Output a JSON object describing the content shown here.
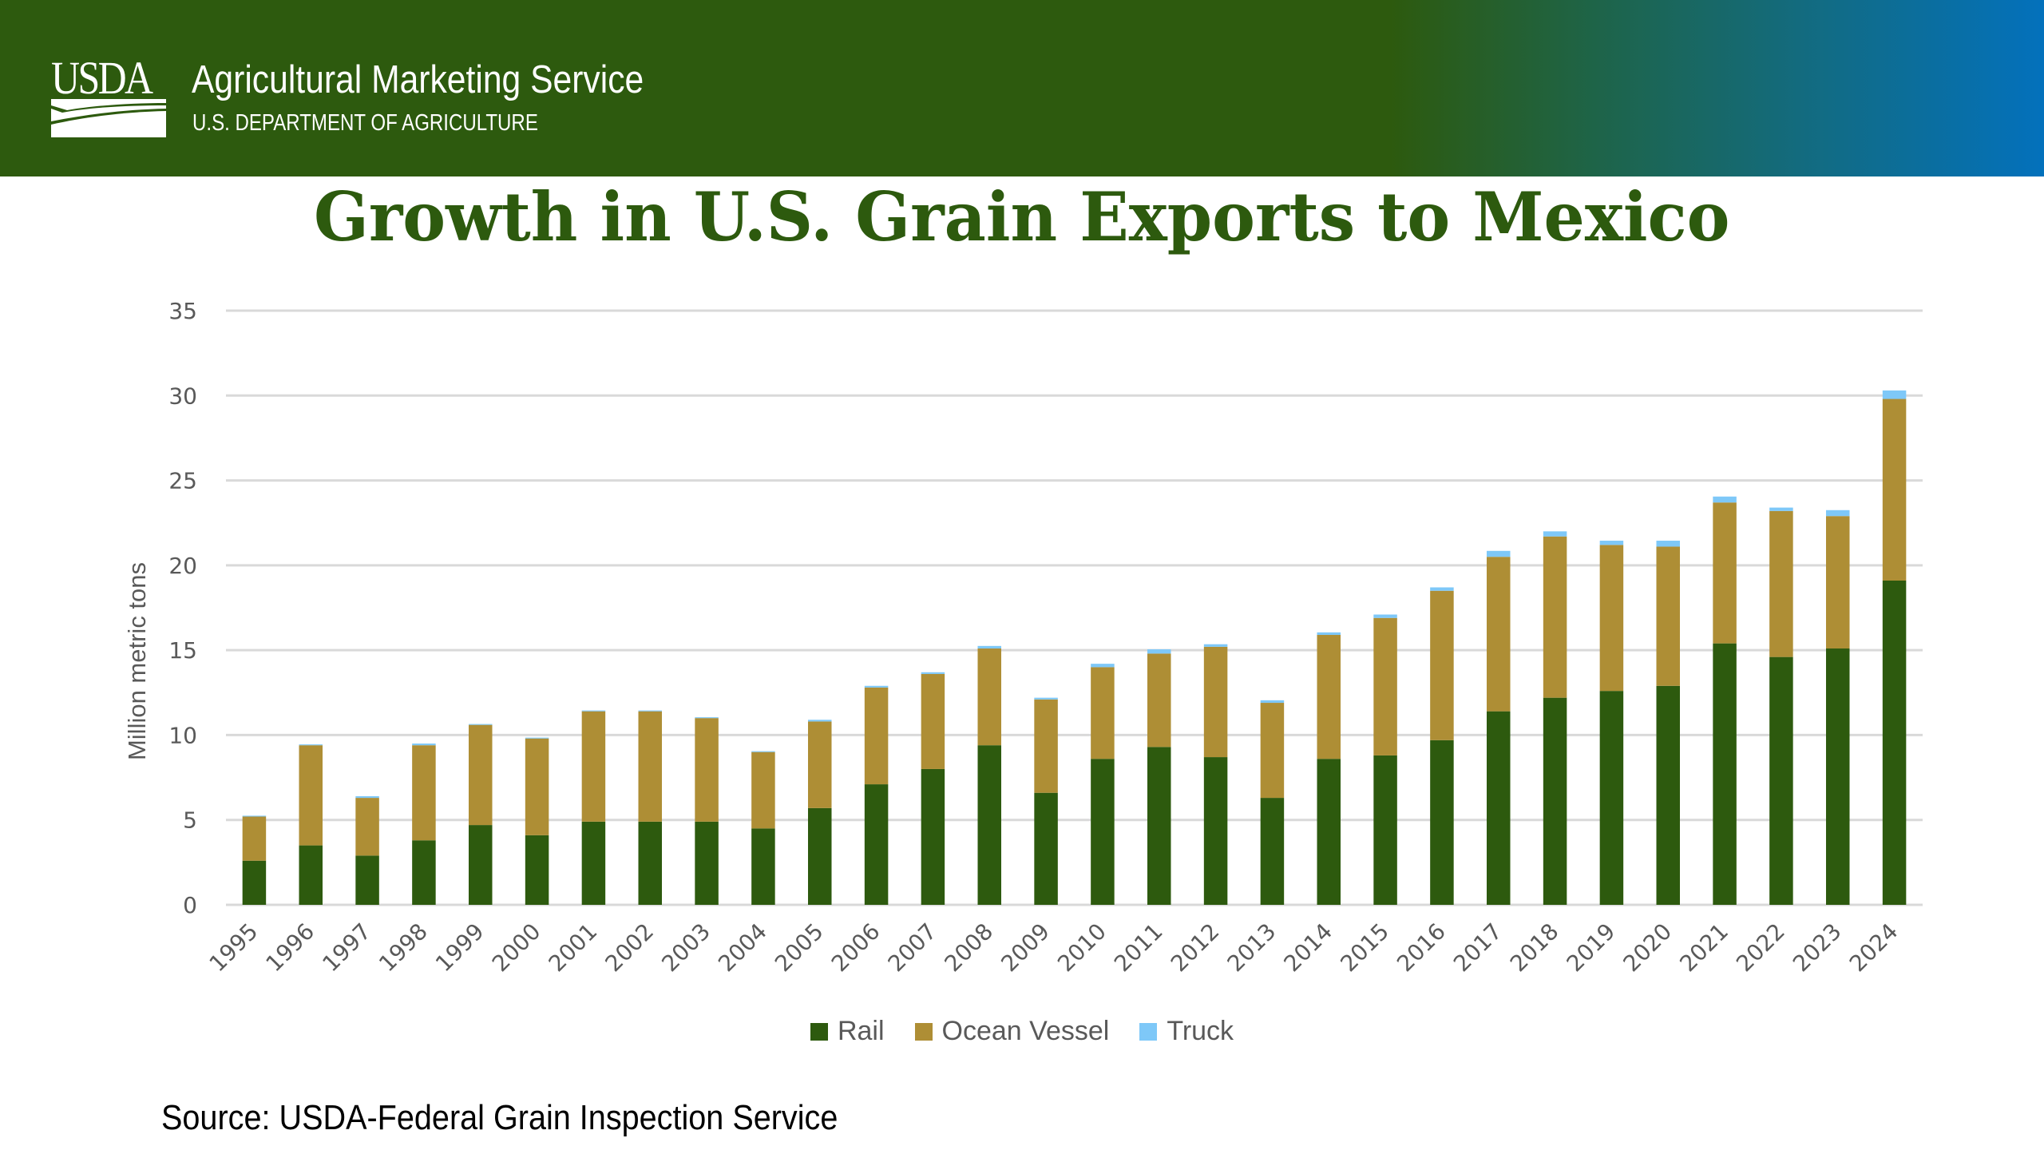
{
  "header": {
    "logo_text": "USDA",
    "agency": "Agricultural Marketing Service",
    "department": "U.S. DEPARTMENT OF AGRICULTURE",
    "colors": {
      "green": "#2D5A0E",
      "blue": "#0371BC"
    }
  },
  "source": "Source: USDA-Federal Grain Inspection Service",
  "chart_data": {
    "type": "bar",
    "stacked": true,
    "title": "Growth in U.S. Grain Exports to Mexico",
    "xlabel": "",
    "ylabel": "Million metric tons",
    "ylim": [
      0,
      35
    ],
    "yticks": [
      0,
      5,
      10,
      15,
      20,
      25,
      30,
      35
    ],
    "grid": true,
    "legend_position": "bottom",
    "categories": [
      "1995",
      "1996",
      "1997",
      "1998",
      "1999",
      "2000",
      "2001",
      "2002",
      "2003",
      "2004",
      "2005",
      "2006",
      "2007",
      "2008",
      "2009",
      "2010",
      "2011",
      "2012",
      "2013",
      "2014",
      "2015",
      "2016",
      "2017",
      "2018",
      "2019",
      "2020",
      "2021",
      "2022",
      "2023",
      "2024"
    ],
    "series": [
      {
        "name": "Rail",
        "color": "#2D5A0E",
        "values": [
          2.6,
          3.5,
          2.9,
          3.8,
          4.7,
          4.1,
          4.9,
          4.9,
          4.9,
          4.5,
          5.7,
          7.1,
          8.0,
          9.4,
          6.6,
          8.6,
          9.3,
          8.7,
          6.3,
          8.6,
          8.8,
          9.7,
          11.4,
          12.2,
          12.6,
          12.9,
          15.4,
          14.6,
          15.1,
          19.1
        ]
      },
      {
        "name": "Ocean Vessel",
        "color": "#AE8E35",
        "values": [
          2.6,
          5.9,
          3.4,
          5.6,
          5.9,
          5.7,
          6.5,
          6.5,
          6.1,
          4.5,
          5.1,
          5.7,
          5.6,
          5.7,
          5.5,
          5.4,
          5.5,
          6.5,
          5.6,
          7.3,
          8.1,
          8.8,
          9.1,
          9.5,
          8.6,
          8.2,
          8.3,
          8.6,
          7.8,
          10.7
        ]
      },
      {
        "name": "Truck",
        "color": "#7EC8F8",
        "values": [
          0.05,
          0.05,
          0.1,
          0.1,
          0.05,
          0.05,
          0.05,
          0.05,
          0.05,
          0.05,
          0.1,
          0.1,
          0.1,
          0.15,
          0.1,
          0.2,
          0.25,
          0.15,
          0.15,
          0.15,
          0.2,
          0.2,
          0.35,
          0.3,
          0.25,
          0.35,
          0.35,
          0.2,
          0.35,
          0.5
        ]
      }
    ]
  }
}
